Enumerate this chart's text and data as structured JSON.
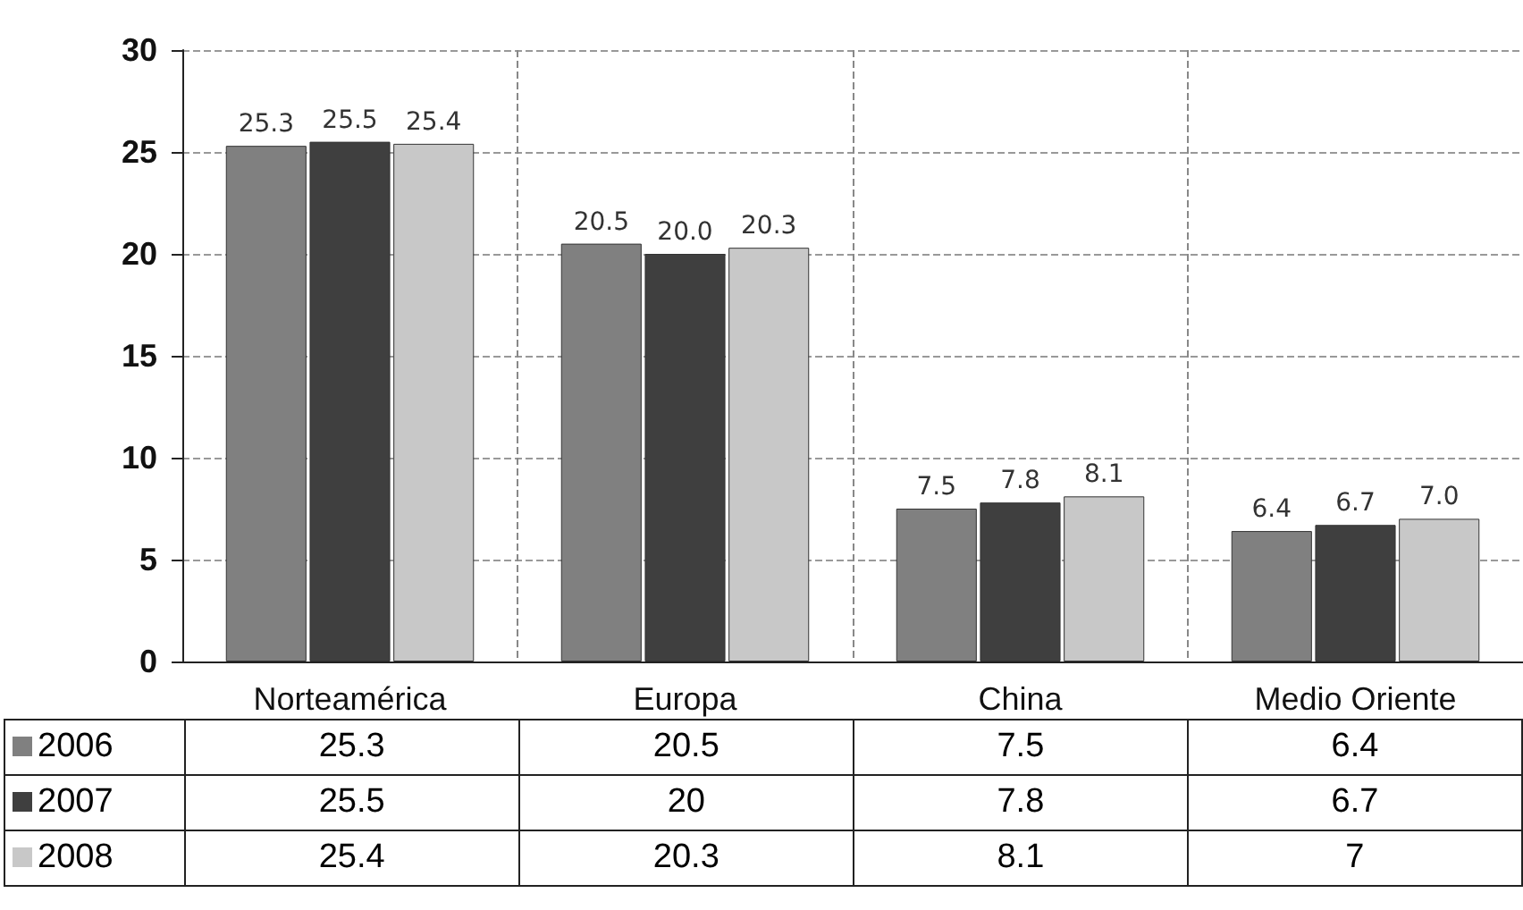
{
  "chart_data": {
    "type": "bar",
    "categories": [
      "Norteamérica",
      "Europa",
      "China",
      "Medio Oriente"
    ],
    "series": [
      {
        "name": "2006",
        "color": "#808080",
        "values": [
          25.3,
          20.5,
          7.5,
          6.4
        ],
        "value_labels": [
          "25.3",
          "20.5",
          "7.5",
          "6.4"
        ]
      },
      {
        "name": "2007",
        "color": "#3f3f3f",
        "values": [
          25.5,
          20,
          7.8,
          6.7
        ],
        "value_labels": [
          "25.5",
          "20.0",
          "7.8",
          "6.7"
        ]
      },
      {
        "name": "2008",
        "color": "#c8c8c8",
        "values": [
          25.4,
          20.3,
          8.1,
          7
        ],
        "value_labels": [
          "25.4",
          "20.3",
          "8.1",
          "7.0"
        ]
      }
    ],
    "annotations": [
      "25.3",
      "20.5",
      "7.5",
      "6.4",
      "25.5",
      "20",
      "7.8",
      "6.7",
      "25.4",
      "20.3",
      "8.1",
      "7"
    ],
    "ylim": [
      0,
      30
    ],
    "yticks": [
      0,
      5,
      10,
      15,
      20,
      25,
      30
    ],
    "grid": true,
    "legend": "bottom left"
  }
}
